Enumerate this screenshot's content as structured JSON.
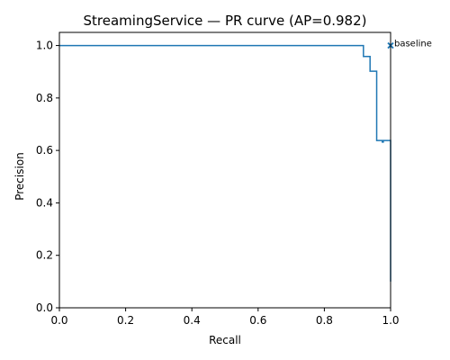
{
  "chart_data": {
    "type": "line",
    "title": "StreamingService — PR curve (AP=0.982)",
    "xlabel": "Recall",
    "ylabel": "Precision",
    "xlim": [
      0.0,
      1.0
    ],
    "ylim": [
      0.0,
      1.05
    ],
    "xticks": [
      "0.0",
      "0.2",
      "0.4",
      "0.6",
      "0.8",
      "1.0"
    ],
    "yticks": [
      "0.0",
      "0.2",
      "0.4",
      "0.6",
      "0.8",
      "1.0"
    ],
    "grid": false,
    "line_color": "#1f77b4",
    "series": [
      {
        "x": [
          0.0,
          0.918,
          0.918,
          0.938,
          0.938,
          0.958,
          0.958,
          0.975,
          0.975,
          0.978,
          0.978,
          1.0,
          1.0
        ],
        "y": [
          1.0,
          1.0,
          0.958,
          0.958,
          0.902,
          0.902,
          0.638,
          0.638,
          0.632,
          0.632,
          0.638,
          0.638,
          0.1
        ]
      }
    ],
    "annotation": {
      "text": "baseline",
      "marker": "x",
      "x": 1.0,
      "y": 1.0
    }
  }
}
